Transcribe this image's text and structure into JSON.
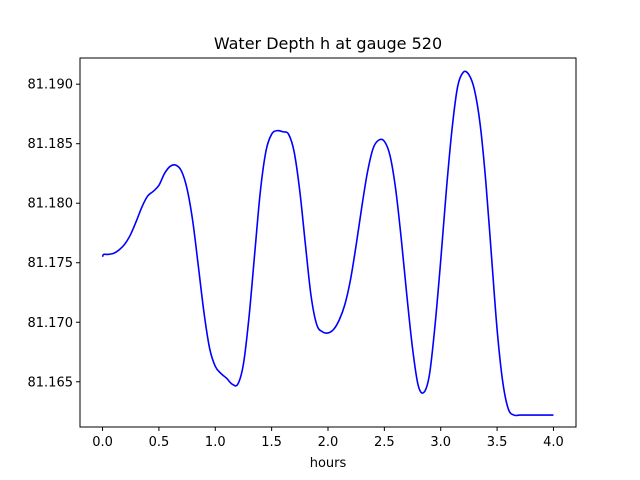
{
  "chart_data": {
    "type": "line",
    "title": "Water Depth h at gauge 520",
    "xlabel": "hours",
    "ylabel": "",
    "xlim": [
      -0.2,
      4.2
    ],
    "ylim": [
      81.1612,
      81.1922
    ],
    "x_ticks": [
      0.0,
      0.5,
      1.0,
      1.5,
      2.0,
      2.5,
      3.0,
      3.5,
      4.0
    ],
    "x_tick_labels": [
      "0.0",
      "0.5",
      "1.0",
      "1.5",
      "2.0",
      "2.5",
      "3.0",
      "3.5",
      "4.0"
    ],
    "y_ticks": [
      81.165,
      81.17,
      81.175,
      81.18,
      81.185,
      81.19
    ],
    "y_tick_labels": [
      "81.165",
      "81.170",
      "81.175",
      "81.180",
      "81.185",
      "81.190"
    ],
    "grid": false,
    "series": [
      {
        "color": "#0000ff",
        "x": [
          0.0,
          0.01,
          0.05,
          0.1,
          0.15,
          0.2,
          0.25,
          0.3,
          0.35,
          0.4,
          0.45,
          0.5,
          0.55,
          0.6,
          0.65,
          0.7,
          0.75,
          0.8,
          0.85,
          0.9,
          0.95,
          1.0,
          1.05,
          1.1,
          1.15,
          1.2,
          1.25,
          1.3,
          1.35,
          1.4,
          1.45,
          1.5,
          1.55,
          1.6,
          1.65,
          1.7,
          1.75,
          1.8,
          1.85,
          1.9,
          1.95,
          2.0,
          2.05,
          2.1,
          2.15,
          2.2,
          2.25,
          2.3,
          2.35,
          2.4,
          2.45,
          2.5,
          2.55,
          2.6,
          2.65,
          2.7,
          2.75,
          2.8,
          2.85,
          2.9,
          2.95,
          3.0,
          3.05,
          3.1,
          3.15,
          3.2,
          3.25,
          3.3,
          3.35,
          3.4,
          3.45,
          3.5,
          3.55,
          3.6,
          3.65,
          3.7,
          3.75,
          3.8,
          3.85,
          3.9,
          3.95,
          4.0
        ],
        "values": [
          81.1755,
          81.1757,
          81.1757,
          81.1758,
          81.1761,
          81.1766,
          81.1774,
          81.1785,
          81.1797,
          81.1806,
          81.181,
          81.1815,
          81.1825,
          81.1831,
          81.1832,
          81.1827,
          81.1812,
          81.1785,
          81.1747,
          81.1708,
          81.1678,
          81.1663,
          81.1657,
          81.1653,
          81.1648,
          81.1648,
          81.1665,
          81.1705,
          81.1758,
          81.181,
          81.1844,
          81.1858,
          81.1861,
          81.186,
          81.1858,
          81.1843,
          81.181,
          81.1765,
          81.1722,
          81.1698,
          81.1692,
          81.1691,
          81.1694,
          81.1702,
          81.1715,
          81.1736,
          81.1765,
          81.1797,
          81.1826,
          81.1846,
          81.1853,
          81.1852,
          81.184,
          81.1812,
          81.177,
          81.1722,
          81.1678,
          81.1647,
          81.1641,
          81.1656,
          81.1698,
          81.1752,
          81.1811,
          81.1862,
          81.1898,
          81.191,
          81.1908,
          81.1895,
          81.1866,
          81.1818,
          81.1756,
          81.1694,
          81.165,
          81.1627,
          81.1622,
          81.1622,
          81.1622,
          81.1622,
          81.1622,
          81.1622,
          81.1622,
          81.1622
        ]
      }
    ]
  }
}
